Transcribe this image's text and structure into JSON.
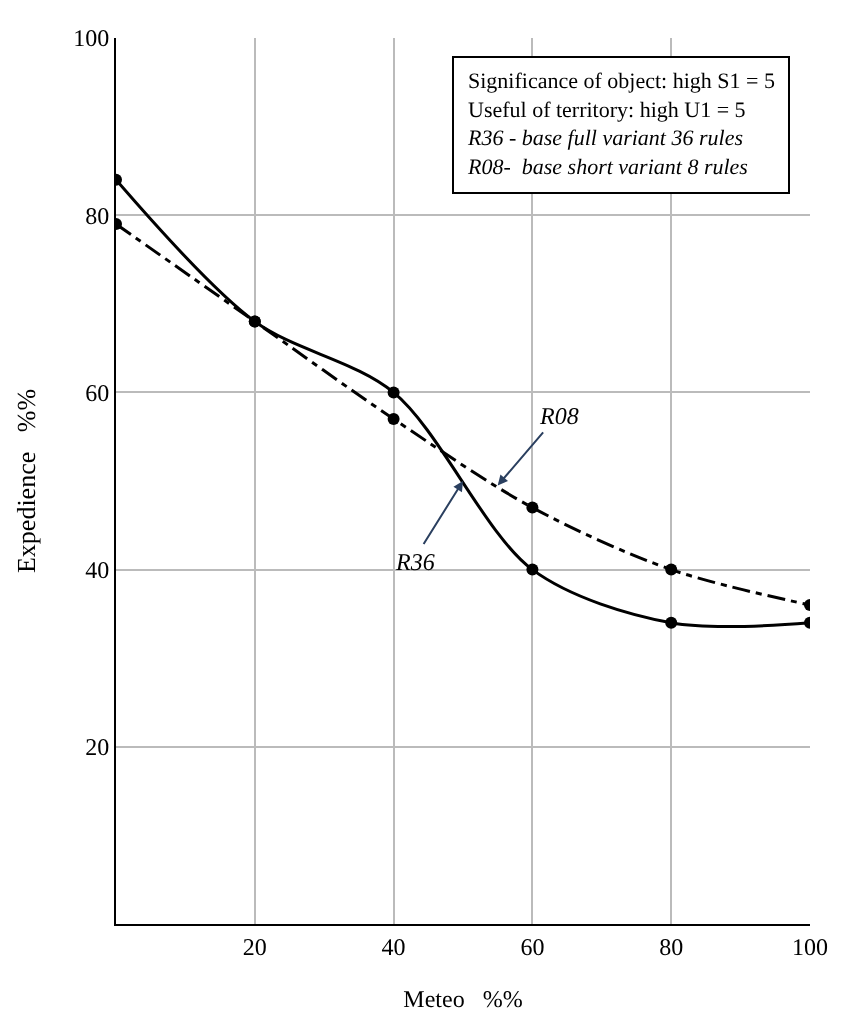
{
  "chart_data": {
    "type": "line",
    "xlabel": "Meteo   %%",
    "ylabel": "Expedience   %%",
    "x": [
      0,
      20,
      40,
      60,
      80,
      100
    ],
    "series": [
      {
        "color": "#000000",
        "line_style": "solid",
        "values": [
          84,
          68,
          60,
          40,
          34,
          34
        ]
      },
      {
        "color": "#000000",
        "line_style": "dashdot",
        "values": [
          79,
          68,
          57,
          47,
          40,
          36
        ]
      }
    ],
    "xlim": [
      0,
      100
    ],
    "ylim": [
      0,
      100
    ],
    "xticks": [
      20,
      40,
      60,
      80,
      100
    ],
    "yticks": [
      20,
      40,
      60,
      80,
      100
    ],
    "grid": true,
    "marker": "circle",
    "legend": false,
    "annotations": [
      "Significance of object: high S1 = 5",
      "Useful of territory: high U1 = 5",
      "R36 - base full variant 36 rules",
      "R08-  base short variant 8 rules",
      {
        "text": "R36",
        "x": 50,
        "y": 50
      },
      {
        "text": "R08",
        "x": 55,
        "y": 49.5
      }
    ]
  }
}
